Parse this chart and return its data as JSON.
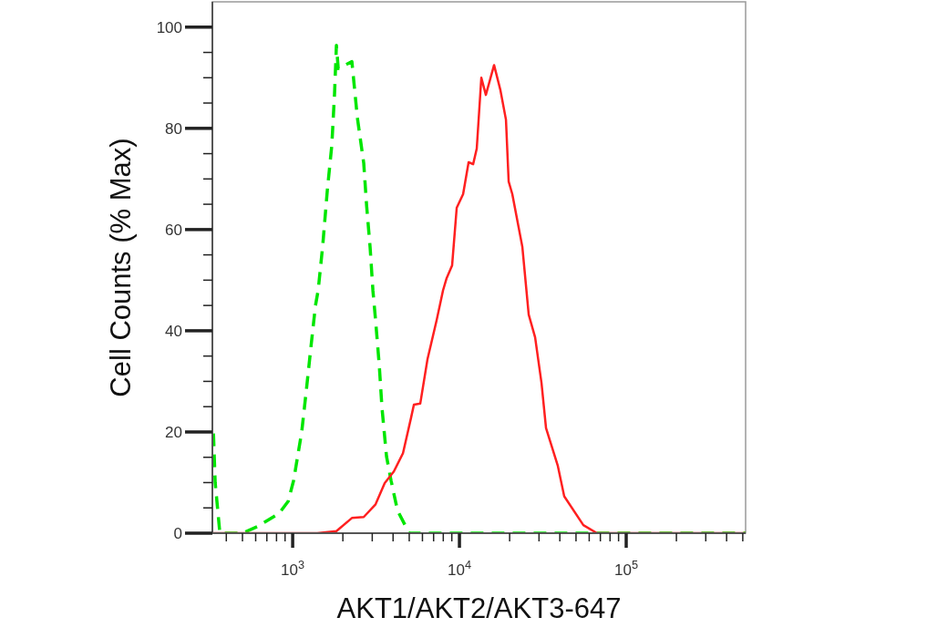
{
  "chart_data": {
    "type": "line",
    "xlabel": "AKT1/AKT2/AKT3-647",
    "ylabel": "Cell Counts (% Max)",
    "log": "x",
    "xlim": [
      330,
      520000
    ],
    "ylim": [
      0,
      105
    ],
    "xticks": [
      {
        "value": 400,
        "label": null
      },
      {
        "value": 500,
        "label": null
      },
      {
        "value": 600,
        "label": null
      },
      {
        "value": 700,
        "label": null
      },
      {
        "value": 800,
        "label": null
      },
      {
        "value": 900,
        "label": null
      },
      {
        "value": 1000,
        "label": "10$^{3}$"
      },
      {
        "value": 2000,
        "label": null
      },
      {
        "value": 3000,
        "label": null
      },
      {
        "value": 4000,
        "label": null
      },
      {
        "value": 5000,
        "label": null
      },
      {
        "value": 6000,
        "label": null
      },
      {
        "value": 7000,
        "label": null
      },
      {
        "value": 8000,
        "label": null
      },
      {
        "value": 9000,
        "label": null
      },
      {
        "value": 10000,
        "label": "10$^{4}$"
      },
      {
        "value": 20000,
        "label": null
      },
      {
        "value": 30000,
        "label": null
      },
      {
        "value": 40000,
        "label": null
      },
      {
        "value": 50000,
        "label": null
      },
      {
        "value": 60000,
        "label": null
      },
      {
        "value": 70000,
        "label": null
      },
      {
        "value": 80000,
        "label": null
      },
      {
        "value": 90000,
        "label": null
      },
      {
        "value": 100000,
        "label": "10$^{5}$"
      },
      {
        "value": 200000,
        "label": null
      },
      {
        "value": 300000,
        "label": null
      },
      {
        "value": 400000,
        "label": null
      },
      {
        "value": 500000,
        "label": null
      }
    ],
    "yticks": [
      0,
      {
        "value": 5,
        "label": null
      },
      {
        "value": 10,
        "label": null
      },
      {
        "value": 15,
        "label": null
      },
      20,
      {
        "value": 25,
        "label": null
      },
      {
        "value": 30,
        "label": null
      },
      {
        "value": 35,
        "label": null
      },
      40,
      {
        "value": 45,
        "label": null
      },
      {
        "value": 50,
        "label": null
      },
      {
        "value": 55,
        "label": null
      },
      60,
      {
        "value": 65,
        "label": null
      },
      {
        "value": 70,
        "label": null
      },
      {
        "value": 75,
        "label": null
      },
      80,
      {
        "value": 85,
        "label": null
      },
      {
        "value": 90,
        "label": null
      },
      {
        "value": 95,
        "label": null
      },
      100
    ],
    "series": [
      {
        "color": "#00e600",
        "line_style": "dashed",
        "x": [
          335,
          343,
          366,
          500,
          612,
          828,
          940,
          1013,
          1134,
          1208,
          1286,
          1370,
          1422,
          1514,
          1613,
          1717,
          1783,
          1829,
          1876,
          2265,
          2443,
          2668,
          2773,
          2913,
          3027,
          3141,
          3305,
          3433,
          3653,
          3890,
          4250,
          5000,
          10000,
          100000,
          520000
        ],
        "values": [
          19.7,
          10,
          0,
          0,
          1.3,
          3.9,
          6.3,
          10.4,
          20.1,
          28.3,
          36.7,
          45,
          48,
          56.8,
          67.7,
          76.7,
          86.9,
          96.4,
          91.8,
          93.2,
          82.1,
          73.1,
          64.9,
          56.5,
          48,
          42.1,
          33.2,
          24.7,
          15.2,
          10.4,
          4.5,
          0,
          0,
          0,
          0
        ]
      },
      {
        "color": "#ff2020",
        "line_style": "solid",
        "x": [
          330,
          1405,
          1829,
          2265,
          2668,
          3141,
          3565,
          4044,
          4586,
          5134,
          5333,
          5821,
          6435,
          7301,
          7975,
          8380,
          9036,
          9630,
          10520,
          11350,
          12080,
          12700,
          13530,
          14400,
          16130,
          17620,
          19010,
          19730,
          20750,
          23830,
          26020,
          28430,
          31050,
          33050,
          38910,
          42490,
          55330,
          66840,
          520000
        ],
        "values": [
          0,
          0,
          0.4,
          3,
          3.2,
          5.7,
          9.9,
          12.2,
          15.8,
          22.9,
          25.4,
          25.6,
          34.4,
          42.1,
          48,
          50.4,
          52.9,
          64.3,
          67,
          73.3,
          72.9,
          76,
          90,
          86.6,
          92.5,
          87.5,
          81.7,
          69.5,
          67,
          56.6,
          43.2,
          38.7,
          29.7,
          20.8,
          13.3,
          7.3,
          1.6,
          0,
          0
        ]
      }
    ]
  }
}
